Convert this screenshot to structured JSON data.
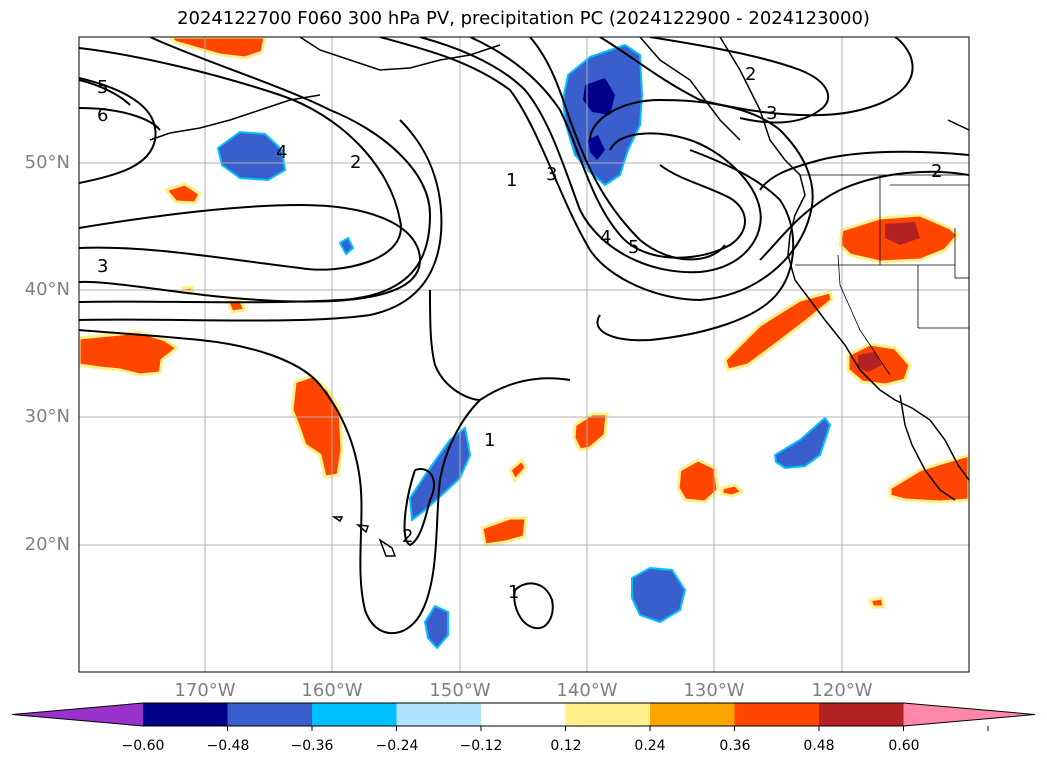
{
  "title": "2024122700 F060 300 hPa PV, precipitation PC (2024122900 - 2024123000)",
  "map": {
    "lon_labels": [
      "170°W",
      "160°W",
      "150°W",
      "140°W",
      "130°W",
      "120°W"
    ],
    "lat_labels": [
      "50°N",
      "40°N",
      "30°N",
      "20°N"
    ],
    "contour_labels": [
      "5",
      "6",
      "3",
      "4",
      "2",
      "1",
      "3",
      "4",
      "5",
      "2",
      "3",
      "2",
      "1",
      "2",
      "1"
    ],
    "colors": {
      "purple": "#9932cc",
      "navy": "#00008b",
      "royal_blue": "#3a5fcd",
      "deep_sky_blue": "#00bfff",
      "light_blue": "#b0e2ff",
      "white": "#ffffff",
      "light_yellow": "#fff08a",
      "orange": "#ffa500",
      "orange_red": "#ff4500",
      "firebrick": "#b22222",
      "pink": "#ff88aa"
    }
  },
  "colorbar": {
    "ticks": [
      "−0.60",
      "−0.48",
      "−0.36",
      "−0.24",
      "−0.12",
      "0.12",
      "0.24",
      "0.36",
      "0.48",
      "0.60"
    ],
    "colors": [
      "#9932cc",
      "#00008b",
      "#3a5fcd",
      "#00bfff",
      "#b0e2ff",
      "#ffffff",
      "#fff08a",
      "#ffa500",
      "#ff4500",
      "#b22222",
      "#ff88aa"
    ]
  }
}
